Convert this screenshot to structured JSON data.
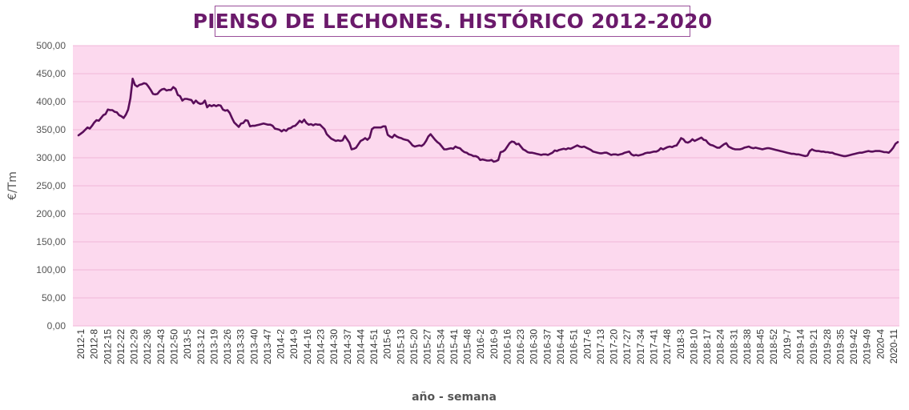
{
  "colors": {
    "plot_background": "#fcd9ee",
    "line": "#5a0e5a",
    "title_text": "#6b1a6b",
    "title_border": "#9a4f9a",
    "gridline": "#f0b8d8"
  },
  "chart_data": {
    "type": "line",
    "title": "PIENSO DE LECHONES. HISTÓRICO 2012-2020",
    "xlabel": "año - semana",
    "ylabel": "€/Tm",
    "ylim": [
      0,
      500
    ],
    "yticks": [
      "0,00",
      "50,00",
      "100,00",
      "150,00",
      "200,00",
      "250,00",
      "300,00",
      "350,00",
      "400,00",
      "450,00",
      "500,00"
    ],
    "grid": true,
    "legend": "none",
    "x_tick_labels": [
      "2012-1",
      "2012-8",
      "2012-15",
      "2012-22",
      "2012-29",
      "2012-36",
      "2012-43",
      "2012-50",
      "2013-5",
      "2013-12",
      "2013-19",
      "2013-26",
      "2013-33",
      "2013-40",
      "2013-47",
      "2014-2",
      "2014-9",
      "2014-16",
      "2014-23",
      "2014-30",
      "2014-37",
      "2014-44",
      "2014-51",
      "2015-6",
      "2015-13",
      "2015-20",
      "2015-27",
      "2015-34",
      "2015-41",
      "2015-48",
      "2016-2",
      "2016-9",
      "2016-16",
      "2016-23",
      "2016-30",
      "2016-37",
      "2016-44",
      "2016-51",
      "2017-6",
      "2017-13",
      "2017-20",
      "2017-27",
      "2017-34",
      "2017-41",
      "2017-48",
      "2018-3",
      "2018-10",
      "2018-17",
      "2018-24",
      "2018-31",
      "2018-38",
      "2018-45",
      "2018-52",
      "2019-7",
      "2019-14",
      "2019-21",
      "2019-28",
      "2019-35",
      "2019-42",
      "2019-49",
      "2020-4",
      "2020-11"
    ],
    "series": [
      {
        "values": [
          340,
          343,
          346,
          350,
          354,
          352,
          357,
          363,
          367,
          366,
          371,
          376,
          378,
          386,
          385,
          385,
          382,
          381,
          376,
          374,
          371,
          377,
          386,
          406,
          441,
          430,
          427,
          430,
          431,
          433,
          432,
          427,
          421,
          414,
          413,
          414,
          419,
          422,
          423,
          420,
          421,
          421,
          426,
          423,
          412,
          410,
          402,
          405,
          405,
          404,
          403,
          397,
          402,
          398,
          396,
          397,
          402,
          390,
          394,
          392,
          394,
          392,
          394,
          393,
          386,
          384,
          385,
          380,
          371,
          363,
          359,
          355,
          361,
          362,
          367,
          366,
          356,
          357,
          357,
          358,
          359,
          360,
          361,
          360,
          359,
          359,
          357,
          352,
          351,
          350,
          347,
          350,
          348,
          352,
          353,
          356,
          357,
          361,
          366,
          363,
          368,
          362,
          359,
          360,
          358,
          360,
          359,
          359,
          355,
          351,
          342,
          338,
          334,
          332,
          330,
          331,
          330,
          331,
          339,
          333,
          327,
          315,
          316,
          318,
          324,
          330,
          332,
          335,
          332,
          336,
          351,
          354,
          354,
          354,
          354,
          356,
          356,
          341,
          338,
          336,
          341,
          338,
          336,
          335,
          333,
          332,
          331,
          327,
          322,
          320,
          321,
          322,
          321,
          324,
          330,
          338,
          342,
          337,
          332,
          328,
          325,
          320,
          315,
          315,
          316,
          317,
          316,
          320,
          318,
          317,
          313,
          310,
          309,
          306,
          305,
          303,
          303,
          301,
          296,
          297,
          296,
          295,
          295,
          296,
          293,
          294,
          296,
          310,
          311,
          314,
          320,
          326,
          329,
          328,
          324,
          325,
          320,
          315,
          313,
          310,
          309,
          309,
          308,
          307,
          306,
          305,
          306,
          306,
          305,
          307,
          309,
          313,
          312,
          314,
          315,
          316,
          315,
          317,
          316,
          318,
          320,
          322,
          320,
          319,
          320,
          318,
          316,
          314,
          311,
          310,
          309,
          308,
          308,
          309,
          309,
          307,
          305,
          306,
          306,
          305,
          306,
          307,
          309,
          310,
          311,
          306,
          304,
          305,
          304,
          305,
          306,
          308,
          309,
          309,
          310,
          311,
          311,
          313,
          317,
          315,
          317,
          319,
          320,
          319,
          321,
          322,
          328,
          335,
          333,
          328,
          327,
          329,
          333,
          330,
          332,
          334,
          336,
          332,
          331,
          326,
          323,
          322,
          320,
          318,
          318,
          321,
          324,
          326,
          320,
          318,
          316,
          315,
          315,
          315,
          316,
          318,
          319,
          320,
          318,
          317,
          318,
          317,
          316,
          315,
          316,
          317,
          317,
          316,
          315,
          314,
          313,
          312,
          311,
          310,
          309,
          308,
          307,
          307,
          306,
          306,
          305,
          304,
          303,
          304,
          312,
          315,
          313,
          312,
          312,
          311,
          311,
          310,
          310,
          309,
          309,
          307,
          306,
          305,
          304,
          303,
          303,
          304,
          305,
          306,
          307,
          308,
          309,
          309,
          310,
          311,
          312,
          311,
          311,
          312,
          312,
          312,
          311,
          310,
          310,
          309,
          313,
          318,
          325,
          328
        ]
      }
    ]
  }
}
